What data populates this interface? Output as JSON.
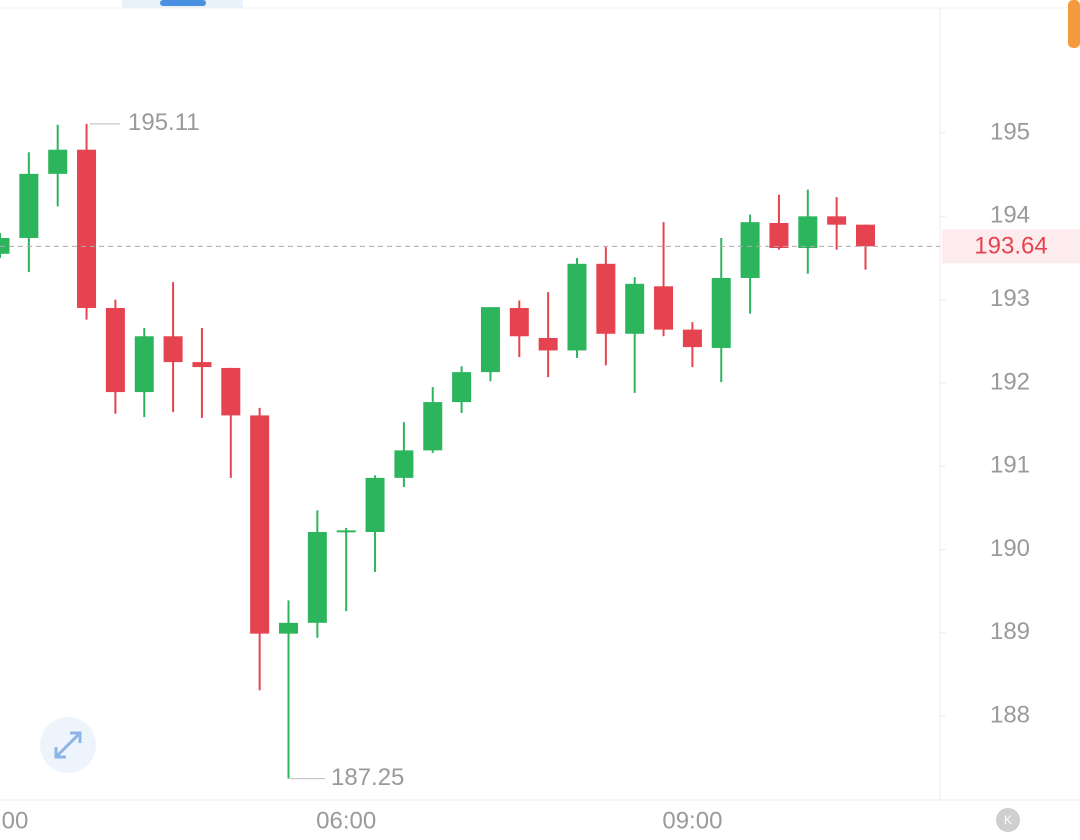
{
  "chart_data": {
    "type": "candlestick",
    "categories": [
      "00",
      null,
      null,
      null,
      null,
      null,
      null,
      null,
      null,
      null,
      null,
      null,
      "06:00",
      null,
      null,
      null,
      null,
      null,
      null,
      null,
      null,
      null,
      null,
      null,
      "09:00",
      null,
      null,
      null,
      null,
      null,
      null
    ],
    "series": [
      {
        "name": "open",
        "values": [
          193.55,
          193.74,
          194.51,
          194.8,
          192.9,
          191.89,
          192.56,
          192.25,
          192.18,
          191.61,
          188.99,
          189.12,
          190.21,
          190.21,
          190.86,
          191.19,
          191.77,
          192.13,
          192.9,
          192.54,
          192.39,
          193.43,
          192.59,
          193.16,
          192.64,
          192.42,
          193.26,
          193.92,
          193.62,
          194.0,
          193.9
        ]
      },
      {
        "name": "high",
        "values": [
          193.8,
          194.77,
          195.1,
          195.11,
          193.0,
          192.66,
          193.21,
          192.66,
          192.18,
          191.7,
          189.39,
          190.47,
          190.26,
          190.89,
          191.53,
          191.95,
          192.2,
          192.91,
          192.99,
          193.09,
          193.5,
          193.63,
          193.27,
          193.93,
          192.73,
          193.74,
          194.02,
          194.26,
          194.32,
          194.23,
          193.9
        ]
      },
      {
        "name": "low",
        "values": [
          193.5,
          193.33,
          194.12,
          192.76,
          191.63,
          191.59,
          191.65,
          191.58,
          190.86,
          188.31,
          187.25,
          188.94,
          189.26,
          189.73,
          190.75,
          191.16,
          191.64,
          192.02,
          192.31,
          192.07,
          192.3,
          192.21,
          191.88,
          192.56,
          192.19,
          192.01,
          192.83,
          193.6,
          193.31,
          193.6,
          193.36
        ]
      },
      {
        "name": "close",
        "values": [
          193.74,
          194.51,
          194.8,
          192.9,
          191.89,
          192.56,
          192.25,
          192.19,
          191.61,
          188.99,
          189.12,
          190.21,
          190.23,
          190.86,
          191.19,
          191.77,
          192.13,
          192.91,
          192.56,
          192.39,
          193.43,
          192.59,
          193.19,
          192.64,
          192.43,
          193.26,
          193.93,
          193.62,
          194.0,
          193.9,
          193.64
        ]
      }
    ],
    "up_color": "#2db55d",
    "down_color": "#e5434f",
    "ylim": [
      187,
      196.5
    ],
    "yticks": [
      188,
      189,
      190,
      191,
      192,
      193,
      194,
      195
    ],
    "max_label": 195.11,
    "min_label": 187.25,
    "last_price": 193.64
  }
}
